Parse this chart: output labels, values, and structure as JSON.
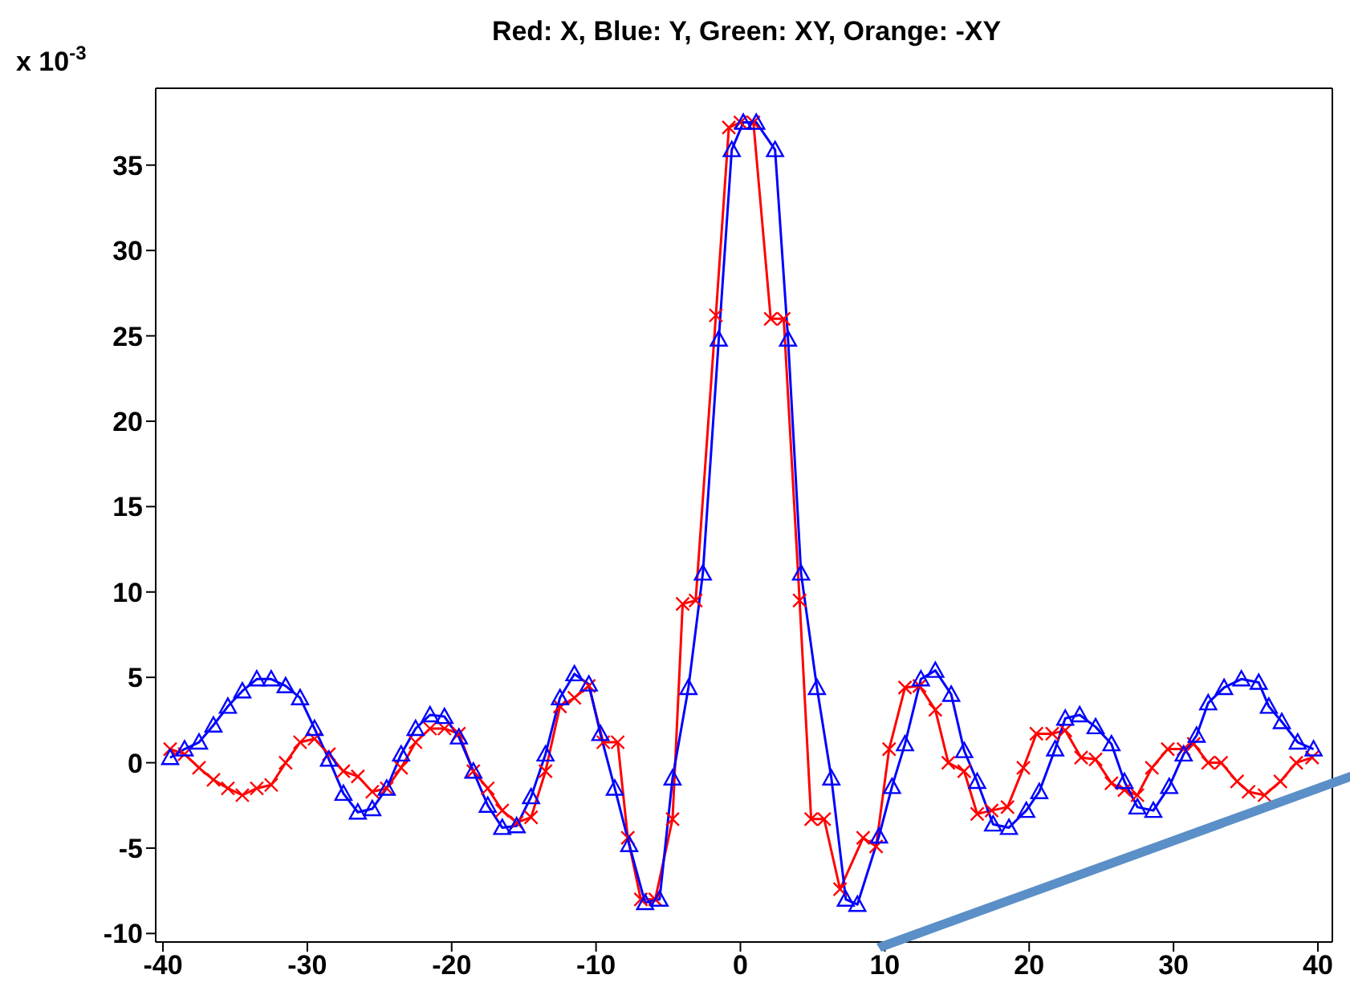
{
  "chart_data": {
    "type": "line",
    "title": "Red: X, Blue: Y, Green: XY, Orange: -XY",
    "annotations": [
      "x 10$^{-3}$"
    ],
    "xlim": [
      -40.5,
      41
    ],
    "ylim": [
      -10.5,
      39.5
    ],
    "xticks": [
      -40,
      -30,
      -20,
      -10,
      0,
      10,
      20,
      30,
      40
    ],
    "yticks": [
      -10,
      -5,
      0,
      5,
      10,
      15,
      20,
      25,
      30,
      35
    ],
    "grid": false,
    "legend": false,
    "series": [
      {
        "color": "#ff0000",
        "marker": "cross",
        "x": [
          -39.5,
          -38.5,
          -37.5,
          -36.5,
          -35.5,
          -34.5,
          -33.5,
          -32.5,
          -31.5,
          -30.5,
          -29.5,
          -28.5,
          -27.5,
          -26.5,
          -25.5,
          -24.5,
          -23.5,
          -22.5,
          -21.5,
          -20.5,
          -19.5,
          -18.5,
          -17.5,
          -16.5,
          -15.5,
          -14.5,
          -13.5,
          -12.5,
          -11.5,
          -10.5,
          -9.5,
          -8.5,
          -7.8,
          -6.9,
          -5.9,
          -4.7,
          -4.0,
          -3.1,
          -1.7,
          -0.8,
          0.0,
          0.9,
          2.1,
          3.0,
          4.1,
          4.9,
          5.8,
          6.9,
          8.5,
          9.4,
          10.3,
          11.4,
          12.4,
          13.5,
          14.4,
          15.5,
          16.4,
          17.4,
          18.5,
          19.6,
          20.5,
          21.6,
          22.5,
          23.6,
          24.6,
          25.7,
          26.6,
          27.5,
          28.5,
          29.6,
          30.7,
          31.4,
          32.4,
          33.3,
          34.4,
          35.2,
          36.3,
          37.4,
          38.5,
          39.6
        ],
        "values": [
          0.8,
          0.5,
          -0.3,
          -1.0,
          -1.5,
          -1.9,
          -1.5,
          -1.3,
          0.0,
          1.2,
          1.4,
          0.5,
          -0.5,
          -0.8,
          -1.7,
          -1.5,
          -0.3,
          1.2,
          2.0,
          2.0,
          1.7,
          -0.5,
          -1.5,
          -2.8,
          -3.5,
          -3.2,
          -0.5,
          3.3,
          3.8,
          4.5,
          1.2,
          1.2,
          -4.4,
          -8.0,
          -8.0,
          -3.3,
          9.3,
          9.5,
          26.2,
          37.2,
          37.5,
          37.5,
          26.0,
          26.0,
          9.5,
          -3.3,
          -3.3,
          -7.4,
          -4.4,
          -4.9,
          0.8,
          4.4,
          4.5,
          3.1,
          0.0,
          -0.5,
          -3.0,
          -2.8,
          -2.6,
          -0.3,
          1.7,
          1.7,
          1.9,
          0.3,
          0.2,
          -1.2,
          -1.6,
          -1.9,
          -0.3,
          0.8,
          0.8,
          1.1,
          0.0,
          0.0,
          -1.1,
          -1.7,
          -1.9,
          -1.1,
          0.0,
          0.3
        ]
      },
      {
        "color": "#0000ff",
        "marker": "triangle",
        "x": [
          -39.5,
          -38.5,
          -37.5,
          -36.5,
          -35.5,
          -34.5,
          -33.5,
          -32.5,
          -31.5,
          -30.5,
          -29.5,
          -28.5,
          -27.5,
          -26.5,
          -25.5,
          -24.5,
          -23.5,
          -22.5,
          -21.5,
          -20.5,
          -19.5,
          -18.5,
          -17.5,
          -16.5,
          -15.5,
          -14.5,
          -13.5,
          -12.5,
          -11.5,
          -10.5,
          -9.7,
          -8.7,
          -7.7,
          -6.6,
          -5.6,
          -4.7,
          -3.6,
          -2.6,
          -1.5,
          -0.6,
          0.2,
          1.1,
          2.4,
          3.3,
          4.2,
          5.3,
          6.3,
          7.3,
          8.1,
          9.6,
          10.5,
          11.4,
          12.5,
          13.5,
          14.6,
          15.5,
          16.4,
          17.5,
          18.6,
          19.8,
          20.7,
          21.8,
          22.5,
          23.5,
          24.6,
          25.7,
          26.6,
          27.5,
          28.6,
          29.7,
          30.7,
          31.6,
          32.4,
          33.5,
          34.7,
          35.9,
          36.6,
          37.5,
          38.6,
          39.7
        ],
        "values": [
          0.3,
          0.8,
          1.2,
          2.2,
          3.3,
          4.2,
          4.9,
          4.9,
          4.5,
          3.8,
          2.0,
          0.2,
          -1.8,
          -2.9,
          -2.7,
          -1.5,
          0.5,
          2.0,
          2.8,
          2.7,
          1.5,
          -0.5,
          -2.5,
          -3.8,
          -3.7,
          -2.0,
          0.5,
          3.8,
          5.2,
          4.6,
          1.7,
          -1.5,
          -4.8,
          -8.2,
          -8.0,
          -0.9,
          4.4,
          11.1,
          24.8,
          35.9,
          37.5,
          37.5,
          35.9,
          24.8,
          11.1,
          4.4,
          -0.9,
          -8.0,
          -8.3,
          -4.3,
          -1.4,
          1.1,
          4.9,
          5.4,
          4.0,
          0.7,
          -1.1,
          -3.6,
          -3.8,
          -2.8,
          -1.7,
          0.8,
          2.6,
          2.8,
          2.1,
          1.1,
          -1.1,
          -2.6,
          -2.8,
          -1.4,
          0.5,
          1.6,
          3.5,
          4.4,
          4.9,
          4.7,
          3.3,
          2.4,
          1.2,
          0.8
        ]
      }
    ]
  }
}
